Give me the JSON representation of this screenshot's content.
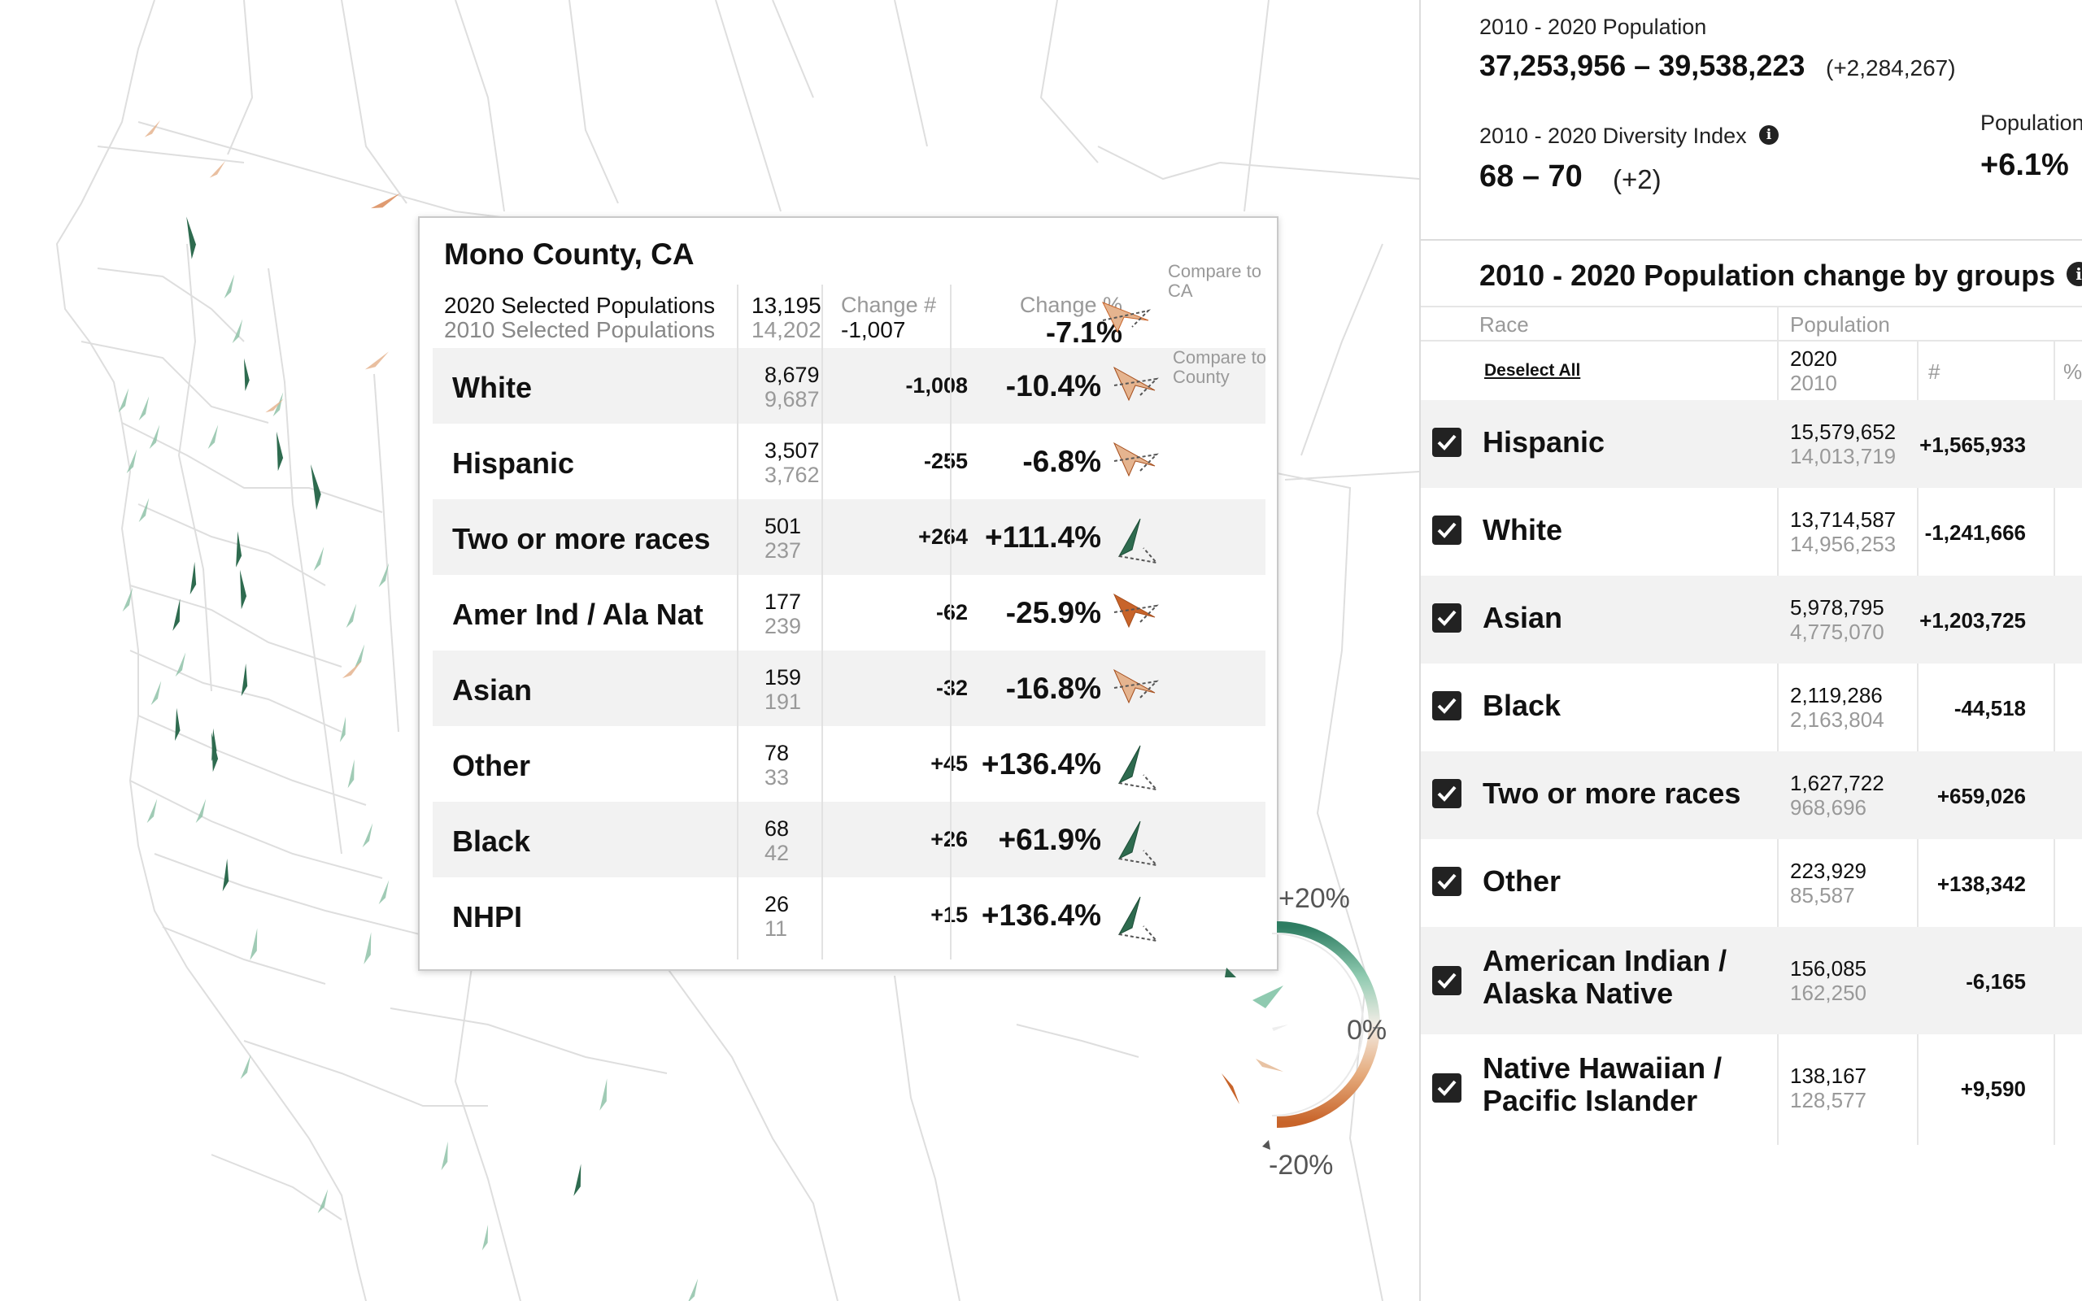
{
  "popup": {
    "title": "Mono County, CA",
    "summary": {
      "label_2020": "2020 Selected Populations",
      "label_2010": "2010 Selected Populations",
      "value_2020": "13,195",
      "value_2010": "14,202",
      "change_label": "Change #",
      "change_value": "-1,007",
      "pct_label": "Change %",
      "pct_value": "-7.1%",
      "compare_ca": "Compare to CA",
      "compare_county": "Compare to County"
    },
    "rows": [
      {
        "name": "White",
        "v2020": "8,679",
        "v2010": "9,687",
        "change": "-1,008",
        "pct": "-10.4%"
      },
      {
        "name": "Hispanic",
        "v2020": "3,507",
        "v2010": "3,762",
        "change": "-255",
        "pct": "-6.8%"
      },
      {
        "name": "Two or more races",
        "v2020": "501",
        "v2010": "237",
        "change": "+264",
        "pct": "+111.4%"
      },
      {
        "name": "Amer Ind / Ala Nat",
        "v2020": "177",
        "v2010": "239",
        "change": "-62",
        "pct": "-25.9%"
      },
      {
        "name": "Asian",
        "v2020": "159",
        "v2010": "191",
        "change": "-32",
        "pct": "-16.8%"
      },
      {
        "name": "Other",
        "v2020": "78",
        "v2010": "33",
        "change": "+45",
        "pct": "+136.4%"
      },
      {
        "name": "Black",
        "v2020": "68",
        "v2010": "42",
        "change": "+26",
        "pct": "+61.9%"
      },
      {
        "name": "NHPI",
        "v2020": "26",
        "v2010": "11",
        "change": "+15",
        "pct": "+136.4%"
      }
    ]
  },
  "legend": {
    "top_label": "+20%",
    "mid_label": "0%",
    "bottom_label": "-20%"
  },
  "panel": {
    "pop_label": "2010 - 2020 Population",
    "pop_range": "37,253,956 – 39,538,223",
    "pop_change": "(+2,284,267)",
    "div_label": "2010 - 2020 Diversity Index",
    "div_range": "68 – 70",
    "div_change": "(+2)",
    "pop_pct_label": "Population",
    "pop_pct_value": "+6.1%",
    "groups_title": "2010 - 2020 Population change by groups",
    "col_race": "Race",
    "col_population": "Population",
    "deselect_all": "Deselect All",
    "year_2020": "2020",
    "year_2010": "2010",
    "col_num": "#",
    "col_pct": "%",
    "groups": [
      {
        "name": "Hispanic",
        "v2020": "15,579,652",
        "v2010": "14,013,719",
        "change": "+1,565,933",
        "checked": true
      },
      {
        "name": "White",
        "v2020": "13,714,587",
        "v2010": "14,956,253",
        "change": "-1,241,666",
        "checked": true
      },
      {
        "name": "Asian",
        "v2020": "5,978,795",
        "v2010": "4,775,070",
        "change": "+1,203,725",
        "checked": true
      },
      {
        "name": "Black",
        "v2020": "2,119,286",
        "v2010": "2,163,804",
        "change": "-44,518",
        "checked": true
      },
      {
        "name": "Two or more races",
        "v2020": "1,627,722",
        "v2010": "968,696",
        "change": "+659,026",
        "checked": true
      },
      {
        "name": "Other",
        "v2020": "223,929",
        "v2010": "85,587",
        "change": "+138,342",
        "checked": true
      },
      {
        "name": "American Indian / Alaska Native",
        "v2020": "156,085",
        "v2010": "162,250",
        "change": "-6,165",
        "checked": true
      },
      {
        "name": "Native Hawaiian / Pacific Islander",
        "v2020": "138,167",
        "v2010": "128,577",
        "change": "+9,590",
        "checked": true
      }
    ]
  },
  "colors": {
    "increase": "#2e6b4f",
    "decrease": "#c8642a",
    "light_increase": "#8fc2a8",
    "light_decrease": "#e5b48f"
  }
}
